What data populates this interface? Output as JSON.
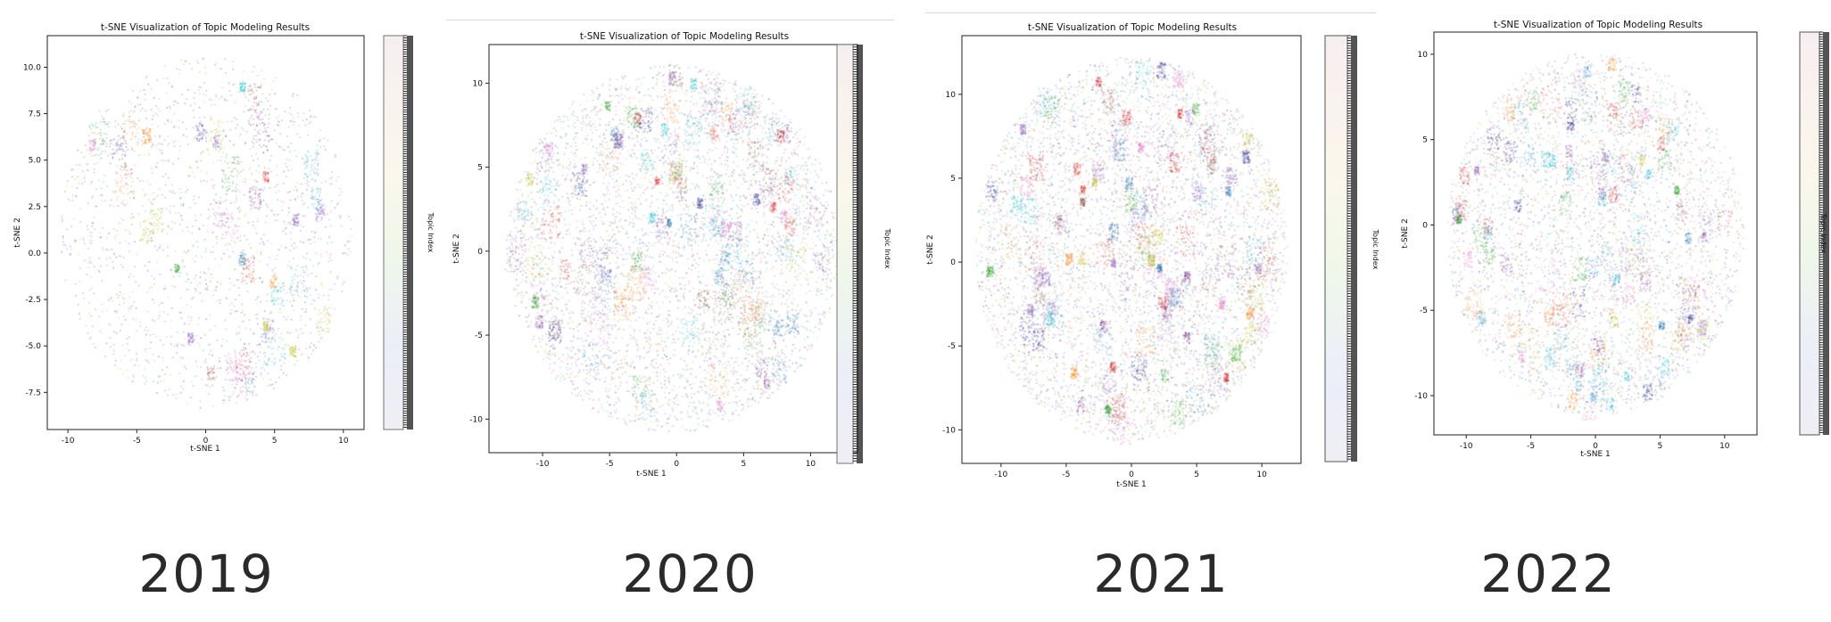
{
  "years": [
    "2019",
    "2020",
    "2021",
    "2022"
  ],
  "chart_data": [
    {
      "type": "scatter",
      "title": "t-SNE Visualization of Topic Modeling Results",
      "xlabel": "t-SNE 1",
      "ylabel": "t-SNE 2",
      "colorbar_label": "Topic Index",
      "xlim": [
        -11.5,
        11.5
      ],
      "ylim": [
        -9.5,
        11.7
      ],
      "xticks": [
        -10,
        -5,
        0,
        5,
        10
      ],
      "yticks": [
        -7.5,
        -5.0,
        -2.5,
        0.0,
        2.5,
        5.0,
        7.5,
        10.0
      ],
      "grid": false,
      "density": "sparse",
      "n_points": 3500
    },
    {
      "type": "scatter",
      "title": "t-SNE Visualization of Topic Modeling Results",
      "xlabel": "t-SNE 1",
      "ylabel": "t-SNE 2",
      "colorbar_label": "Topic Index",
      "xlim": [
        -14,
        13.5
      ],
      "ylim": [
        -12,
        12.3
      ],
      "xticks": [
        -10,
        -5,
        0,
        5,
        10
      ],
      "yticks": [
        -10,
        -5,
        0,
        5,
        10
      ],
      "grid": false,
      "density": "dense",
      "n_points": 9000
    },
    {
      "type": "scatter",
      "title": "t-SNE Visualization of Topic Modeling Results",
      "xlabel": "t-SNE 1",
      "ylabel": "t-SNE 2",
      "colorbar_label": "Topic Index",
      "xlim": [
        -13,
        13
      ],
      "ylim": [
        -12,
        13.5
      ],
      "xticks": [
        -10,
        -5,
        0,
        5,
        10
      ],
      "yticks": [
        -10,
        -5,
        0,
        5,
        10
      ],
      "grid": false,
      "density": "very dense",
      "n_points": 11000
    },
    {
      "type": "scatter",
      "title": "t-SNE Visualization of Topic Modeling Results",
      "xlabel": "t-SNE 1",
      "ylabel": "t-SNE 2",
      "colorbar_label": "Topic Index",
      "xlim": [
        -12.5,
        12.5
      ],
      "ylim": [
        -12.3,
        11.3
      ],
      "xticks": [
        -10,
        -5,
        0,
        5,
        10
      ],
      "yticks": [
        -10,
        -5,
        0,
        5,
        10
      ],
      "grid": false,
      "density": "dense",
      "n_points": 8000
    }
  ]
}
